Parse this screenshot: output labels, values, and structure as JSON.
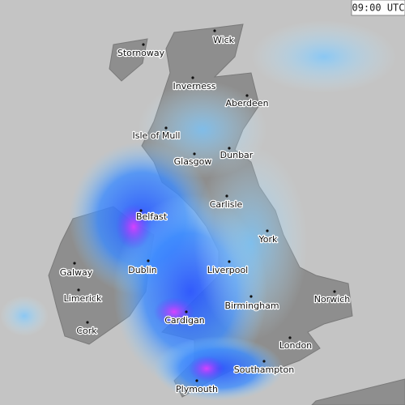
{
  "timestamp": "09:00 UTC",
  "cities": [
    {
      "label": "Wick"
    },
    {
      "label": "Stornoway"
    },
    {
      "label": "Inverness"
    },
    {
      "label": "Aberdeen"
    },
    {
      "label": "Isle of Mull"
    },
    {
      "label": "Dunbar"
    },
    {
      "label": "Glasgow"
    },
    {
      "label": "Carlisle"
    },
    {
      "label": "Belfast"
    },
    {
      "label": "York"
    },
    {
      "label": "Galway"
    },
    {
      "label": "Dublin"
    },
    {
      "label": "Liverpool"
    },
    {
      "label": "Limerick"
    },
    {
      "label": "Birmingham"
    },
    {
      "label": "Norwich"
    },
    {
      "label": "Cardigan"
    },
    {
      "label": "Cork"
    },
    {
      "label": "London"
    },
    {
      "label": "Southampton"
    },
    {
      "label": "Plymouth"
    }
  ]
}
